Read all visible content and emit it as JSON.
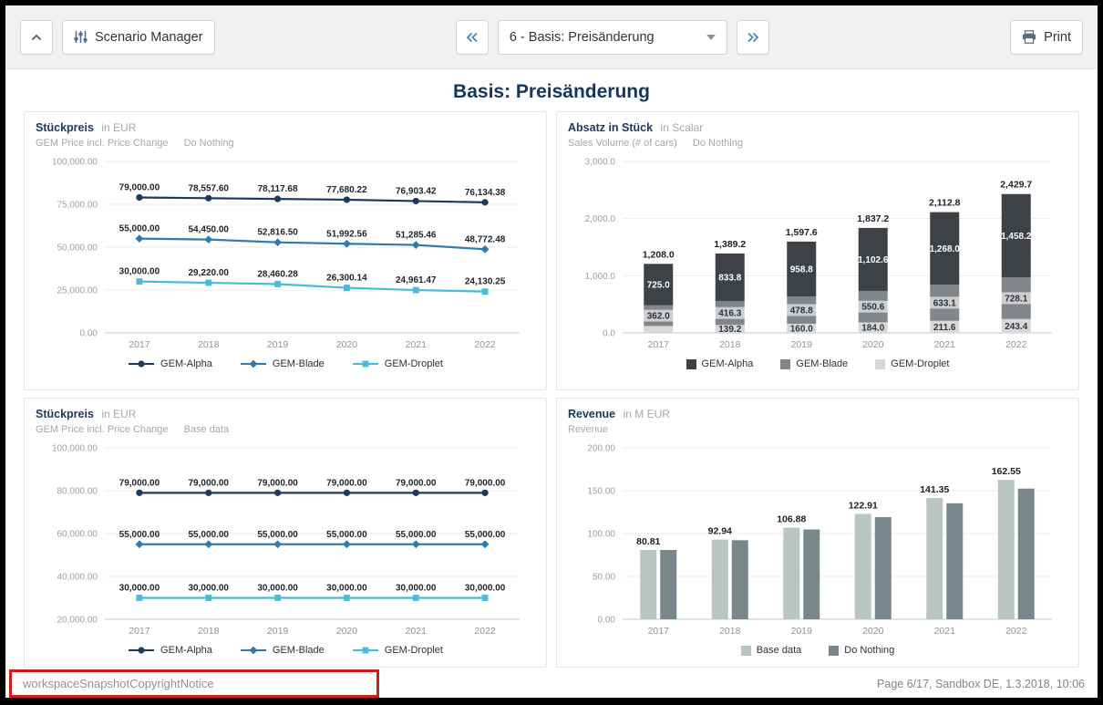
{
  "toolbar": {
    "scenario_manager": "Scenario Manager",
    "page_selector_value": "6 - Basis: Preisänderung",
    "print": "Print"
  },
  "page": {
    "title": "Basis: Preisänderung"
  },
  "footer": {
    "left_notice": "workspaceSnapshotCopyrightNotice",
    "right_info": "Page 6/17, Sandbox DE, 1.3.2018, 10:06"
  },
  "colors": {
    "accent_navy": "#17365d",
    "toolbar_bg": "#f0f1f2",
    "annotation_red": "#cf1d1d",
    "gem_alpha_line": "#1b3a5e",
    "gem_blade_line": "#2f7ab0",
    "gem_droplet_line": "#45bcd9",
    "bar_dark": "#3e4145",
    "bar_gray": "#828689",
    "bar_light": "#d6d8da",
    "revenue_base": "#b8c5c3",
    "revenue_do_nothing": "#78878a"
  },
  "chart_data": [
    {
      "type": "line",
      "title": "Stückpreis",
      "unit": "in EUR",
      "subtitle": "GEM Price incl. Price Change",
      "scenario": "Do Nothing",
      "categories": [
        "2017",
        "2018",
        "2019",
        "2020",
        "2021",
        "2022"
      ],
      "ylim": [
        0,
        100000
      ],
      "yticks": [
        0,
        25000,
        50000,
        75000,
        100000
      ],
      "ytick_labels": [
        "0.00",
        "25,000.00",
        "50,000.00",
        "75,000.00",
        "100,000.00"
      ],
      "series": [
        {
          "name": "GEM-Alpha",
          "color": "#1b3a5e",
          "marker": "circle",
          "values": [
            79000,
            78557.6,
            78117.68,
            77680.22,
            76903.42,
            76134.38
          ],
          "labels": [
            "79,000.00",
            "78,557.60",
            "78,117.68",
            "77,680.22",
            "76,903.42",
            "76,134.38"
          ]
        },
        {
          "name": "GEM-Blade",
          "color": "#2f7ab0",
          "marker": "diamond",
          "values": [
            55000,
            54450,
            52816.5,
            51992.56,
            51285.46,
            48772.48
          ],
          "labels": [
            "55,000.00",
            "54,450.00",
            "52,816.50",
            "51,992.56",
            "51,285.46",
            "48,772.48"
          ]
        },
        {
          "name": "GEM-Droplet",
          "color": "#45bcd9",
          "marker": "square",
          "values": [
            30000,
            29220,
            28460.28,
            26300.14,
            24961.47,
            24130.25
          ],
          "labels": [
            "30,000.00",
            "29,220.00",
            "28,460.28",
            "26,300.14",
            "24,961.47",
            "24,130.25"
          ]
        }
      ]
    },
    {
      "type": "stacked-bar",
      "title": "Absatz in Stück",
      "unit": "in Scalar",
      "subtitle": "Sales Volume (# of cars)",
      "scenario": "Do Nothing",
      "categories": [
        "2017",
        "2018",
        "2019",
        "2020",
        "2021",
        "2022"
      ],
      "ylim": [
        0,
        3000
      ],
      "yticks": [
        0,
        1000,
        2000,
        3000
      ],
      "ytick_labels": [
        "0.0",
        "1,000.0",
        "2,000.0",
        "3,000.0"
      ],
      "totals_labels": [
        "1,208.0",
        "1,389.2",
        "1,597.6",
        "1,837.2",
        "2,112.8",
        "2,429.7"
      ],
      "series": [
        {
          "name": "GEM-Droplet",
          "color": "#d6d8da",
          "label_color": "#33383c",
          "chip": false,
          "values": [
            121,
            139.2,
            160,
            184,
            211.6,
            243.4
          ],
          "labels": [
            "",
            "139.2",
            "160.0",
            "184.0",
            "211.6",
            "243.4"
          ]
        },
        {
          "name": "GEM-Blade",
          "color": "#828689",
          "label_color": "#2b2f33",
          "chip": true,
          "values": [
            362,
            416.3,
            478.8,
            550.6,
            633.1,
            728.1
          ],
          "labels": [
            "362.0",
            "416.3",
            "478.8",
            "550.6",
            "633.1",
            "728.1"
          ]
        },
        {
          "name": "GEM-Alpha",
          "color": "#3e4145",
          "label_color": "#ffffff",
          "chip": false,
          "values": [
            725,
            833.8,
            958.8,
            1102.6,
            1268,
            1458.2
          ],
          "labels": [
            "725.0",
            "833.8",
            "958.8",
            "1,102.6",
            "1,268.0",
            "1,458.2"
          ]
        }
      ]
    },
    {
      "type": "line",
      "title": "Stückpreis",
      "unit": "in EUR",
      "subtitle": "GEM Price incl. Price Change",
      "scenario": "Base data",
      "categories": [
        "2017",
        "2018",
        "2019",
        "2020",
        "2021",
        "2022"
      ],
      "ylim": [
        20000,
        100000
      ],
      "yticks": [
        20000,
        40000,
        60000,
        80000,
        100000
      ],
      "ytick_labels": [
        "20,000.00",
        "40,000.00",
        "60,000.00",
        "80,000.00",
        "100,000.00"
      ],
      "series": [
        {
          "name": "GEM-Alpha",
          "color": "#1b3a5e",
          "marker": "circle",
          "values": [
            79000,
            79000,
            79000,
            79000,
            79000,
            79000
          ],
          "labels": [
            "79,000.00",
            "79,000.00",
            "79,000.00",
            "79,000.00",
            "79,000.00",
            "79,000.00"
          ]
        },
        {
          "name": "GEM-Blade",
          "color": "#2f7ab0",
          "marker": "diamond",
          "values": [
            55000,
            55000,
            55000,
            55000,
            55000,
            55000
          ],
          "labels": [
            "55,000.00",
            "55,000.00",
            "55,000.00",
            "55,000.00",
            "55,000.00",
            "55,000.00"
          ]
        },
        {
          "name": "GEM-Droplet",
          "color": "#45bcd9",
          "marker": "square",
          "values": [
            30000,
            30000,
            30000,
            30000,
            30000,
            30000
          ],
          "labels": [
            "30,000.00",
            "30,000.00",
            "30,000.00",
            "30,000.00",
            "30,000.00",
            "30,000.00"
          ]
        }
      ]
    },
    {
      "type": "grouped-bar",
      "title": "Revenue",
      "unit": "in M EUR",
      "subtitle": "Revenue",
      "scenario": "",
      "categories": [
        "2017",
        "2018",
        "2019",
        "2020",
        "2021",
        "2022"
      ],
      "ylim": [
        0,
        200
      ],
      "yticks": [
        0,
        50,
        100,
        150,
        200
      ],
      "ytick_labels": [
        "0.00",
        "50.00",
        "100.00",
        "150.00",
        "200.00"
      ],
      "series": [
        {
          "name": "Base data",
          "color": "#b8c5c3",
          "values": [
            80.81,
            92.94,
            106.88,
            122.91,
            141.35,
            162.55
          ],
          "labels": [
            "80.81",
            "92.94",
            "106.88",
            "122.91",
            "141.35",
            "162.55"
          ]
        },
        {
          "name": "Do Nothing",
          "color": "#78878a",
          "values": [
            80.8,
            92.2,
            104.7,
            119.1,
            135.3,
            152.4
          ],
          "labels": [
            "",
            "",
            "",
            "",
            "",
            ""
          ]
        }
      ]
    }
  ]
}
